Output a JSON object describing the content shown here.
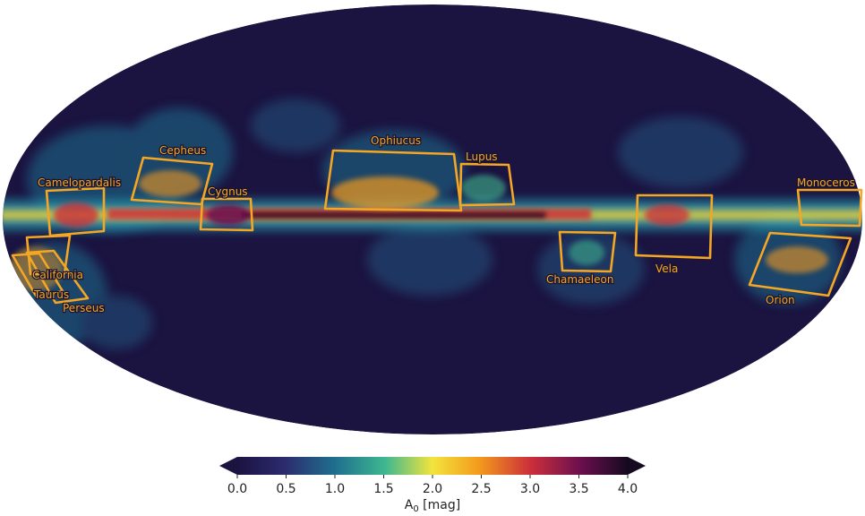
{
  "map": {
    "projection": "mollweide",
    "background_color": "#1b1340"
  },
  "regions": [
    {
      "name": "Cepheus"
    },
    {
      "name": "Ophiucus"
    },
    {
      "name": "Lupus"
    },
    {
      "name": "Camelopardalis"
    },
    {
      "name": "Cygnus"
    },
    {
      "name": "Monoceros"
    },
    {
      "name": "California"
    },
    {
      "name": "Taurus"
    },
    {
      "name": "Perseus"
    },
    {
      "name": "Chamaeleon"
    },
    {
      "name": "Vela"
    },
    {
      "name": "Orion"
    }
  ],
  "colorbar": {
    "colormap": "inferno-like",
    "min": 0.0,
    "max": 4.0,
    "extend": "both",
    "ticks": [
      "0.0",
      "0.5",
      "1.0",
      "1.5",
      "2.0",
      "2.5",
      "3.0",
      "3.5",
      "4.0"
    ],
    "label_main": "A",
    "label_sub": "0",
    "label_unit": " [mag]"
  }
}
